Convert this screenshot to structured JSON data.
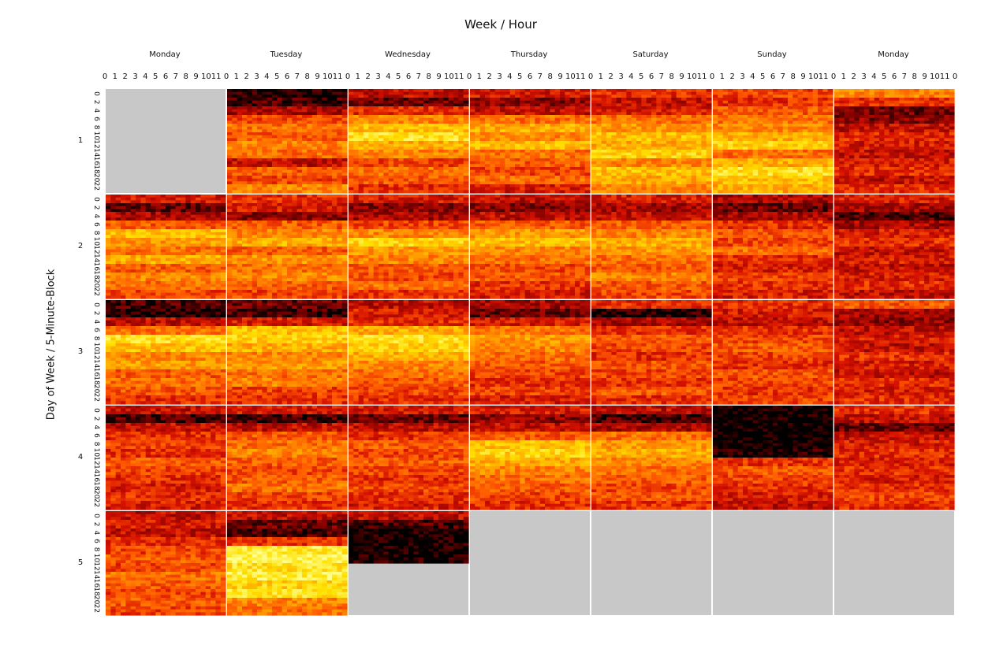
{
  "chart_data": {
    "type": "heatmap",
    "title": "Week / Hour",
    "ylabel": "Day of Week / 5-Minute-Block",
    "columns": [
      "Monday",
      "Tuesday",
      "Wednesday",
      "Thursday",
      "Saturday",
      "Sunday",
      "Monday"
    ],
    "rows": [
      "1",
      "2",
      "3",
      "4",
      "5"
    ],
    "x_ticks": [
      "0",
      "1",
      "2",
      "3",
      "4",
      "5",
      "6",
      "7",
      "8",
      "9",
      "10",
      "11",
      "0"
    ],
    "y_ticks": [
      "0",
      "2",
      "4",
      "6",
      "8",
      "10",
      "12",
      "14",
      "16",
      "18",
      "20",
      "22"
    ],
    "colormap": [
      "#000000",
      "#7a0000",
      "#d41000",
      "#ff5a00",
      "#ffa000",
      "#ffe000",
      "#ffff90"
    ],
    "missing_color": "#c8c8c8",
    "missing_cells": [
      [
        0,
        0
      ],
      [
        4,
        3
      ],
      [
        4,
        4
      ],
      [
        4,
        5
      ],
      [
        4,
        6
      ]
    ],
    "partial_cells": [
      {
        "row": 4,
        "col": 2,
        "filled_fraction": 0.55
      }
    ],
    "row_profiles": [
      [
        null,
        [
          0.05,
          0.1,
          0.25,
          0.45,
          0.55,
          0.5,
          0.6,
          0.55,
          0.3,
          0.5,
          0.45,
          0.6
        ],
        [
          0.3,
          0.15,
          0.4,
          0.6,
          0.75,
          0.85,
          0.7,
          0.6,
          0.45,
          0.55,
          0.5,
          0.4
        ],
        [
          0.35,
          0.2,
          0.3,
          0.55,
          0.7,
          0.6,
          0.75,
          0.55,
          0.5,
          0.45,
          0.55,
          0.35
        ],
        [
          0.4,
          0.3,
          0.35,
          0.55,
          0.65,
          0.75,
          0.7,
          0.8,
          0.6,
          0.75,
          0.7,
          0.6
        ],
        [
          0.45,
          0.4,
          0.5,
          0.55,
          0.6,
          0.7,
          0.8,
          0.55,
          0.7,
          0.85,
          0.75,
          0.7
        ],
        [
          0.6,
          0.4,
          0.15,
          0.2,
          0.3,
          0.4,
          0.35,
          0.3,
          0.35,
          0.4,
          0.3,
          0.4
        ]
      ],
      [
        [
          0.35,
          0.15,
          0.25,
          0.5,
          0.75,
          0.65,
          0.55,
          0.7,
          0.5,
          0.6,
          0.55,
          0.45
        ],
        [
          0.4,
          0.35,
          0.2,
          0.5,
          0.6,
          0.7,
          0.5,
          0.65,
          0.55,
          0.6,
          0.5,
          0.45
        ],
        [
          0.35,
          0.2,
          0.25,
          0.45,
          0.6,
          0.8,
          0.65,
          0.6,
          0.5,
          0.45,
          0.55,
          0.4
        ],
        [
          0.3,
          0.2,
          0.3,
          0.5,
          0.65,
          0.75,
          0.6,
          0.55,
          0.45,
          0.5,
          0.4,
          0.35
        ],
        [
          0.35,
          0.25,
          0.3,
          0.5,
          0.6,
          0.7,
          0.65,
          0.55,
          0.5,
          0.6,
          0.5,
          0.45
        ],
        [
          0.25,
          0.15,
          0.25,
          0.4,
          0.5,
          0.45,
          0.55,
          0.4,
          0.35,
          0.45,
          0.4,
          0.35
        ],
        [
          0.35,
          0.25,
          0.1,
          0.25,
          0.35,
          0.4,
          0.3,
          0.35,
          0.3,
          0.35,
          0.4,
          0.3
        ]
      ],
      [
        [
          0.1,
          0.05,
          0.3,
          0.55,
          0.85,
          0.75,
          0.6,
          0.65,
          0.5,
          0.55,
          0.5,
          0.4
        ],
        [
          0.15,
          0.1,
          0.35,
          0.75,
          0.8,
          0.7,
          0.6,
          0.65,
          0.55,
          0.6,
          0.45,
          0.4
        ],
        [
          0.3,
          0.35,
          0.4,
          0.7,
          0.85,
          0.8,
          0.7,
          0.6,
          0.55,
          0.5,
          0.45,
          0.4
        ],
        [
          0.25,
          0.15,
          0.35,
          0.55,
          0.65,
          0.6,
          0.55,
          0.5,
          0.45,
          0.4,
          0.45,
          0.35
        ],
        [
          0.4,
          0.05,
          0.25,
          0.4,
          0.5,
          0.45,
          0.4,
          0.5,
          0.45,
          0.4,
          0.5,
          0.4
        ],
        [
          0.4,
          0.35,
          0.3,
          0.4,
          0.45,
          0.5,
          0.45,
          0.4,
          0.5,
          0.45,
          0.4,
          0.45
        ],
        [
          0.5,
          0.25,
          0.2,
          0.3,
          0.35,
          0.3,
          0.4,
          0.35,
          0.3,
          0.4,
          0.35,
          0.4
        ]
      ],
      [
        [
          0.3,
          0.1,
          0.3,
          0.4,
          0.45,
          0.4,
          0.5,
          0.45,
          0.4,
          0.35,
          0.4,
          0.35
        ],
        [
          0.35,
          0.1,
          0.3,
          0.5,
          0.55,
          0.6,
          0.5,
          0.45,
          0.5,
          0.55,
          0.45,
          0.4
        ],
        [
          0.35,
          0.15,
          0.3,
          0.4,
          0.5,
          0.45,
          0.5,
          0.45,
          0.4,
          0.45,
          0.4,
          0.35
        ],
        [
          0.35,
          0.2,
          0.3,
          0.5,
          0.75,
          0.8,
          0.7,
          0.6,
          0.55,
          0.5,
          0.45,
          0.4
        ],
        [
          0.3,
          0.1,
          0.25,
          0.55,
          0.65,
          0.7,
          0.6,
          0.55,
          0.5,
          0.45,
          0.5,
          0.4
        ],
        [
          0.0,
          0.0,
          0.0,
          0.0,
          0.0,
          0.05,
          0.4,
          0.5,
          0.45,
          0.4,
          0.35,
          0.3
        ],
        [
          0.4,
          0.3,
          0.15,
          0.3,
          0.35,
          0.4,
          0.35,
          0.4,
          0.35,
          0.4,
          0.45,
          0.4
        ]
      ],
      [
        [
          0.3,
          0.35,
          0.3,
          0.4,
          0.45,
          0.5,
          0.45,
          0.55,
          0.5,
          0.45,
          0.5,
          0.45
        ],
        [
          0.3,
          0.15,
          0.1,
          0.4,
          0.9,
          0.95,
          0.85,
          0.9,
          0.8,
          0.85,
          0.6,
          0.55
        ],
        [
          0.3,
          0.1,
          0.02,
          0.02,
          0.02,
          0.02,
          null,
          null,
          null,
          null,
          null,
          null
        ],
        null,
        null,
        null,
        null
      ]
    ]
  }
}
